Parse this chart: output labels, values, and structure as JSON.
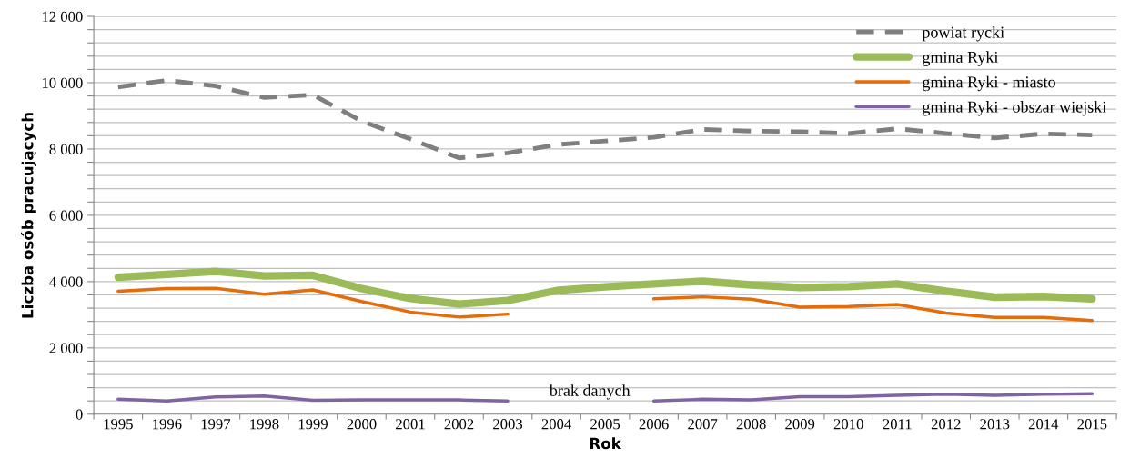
{
  "chart_data": {
    "type": "line",
    "xlabel": "Rok",
    "ylabel": "Liczba osób pracujących",
    "categories": [
      "1995",
      "1996",
      "1997",
      "1998",
      "1999",
      "2000",
      "2001",
      "2002",
      "2003",
      "2004",
      "2005",
      "2006",
      "2007",
      "2008",
      "2009",
      "2010",
      "2011",
      "2012",
      "2013",
      "2014",
      "2015"
    ],
    "series": [
      {
        "name": "powiat rycki",
        "color": "#7f7f7f",
        "line_style": "dashed",
        "values": [
          9870,
          10070,
          9900,
          9550,
          9630,
          8840,
          8300,
          7730,
          7880,
          8130,
          8240,
          8350,
          8590,
          8540,
          8520,
          8470,
          8610,
          8470,
          8330,
          8460,
          8420
        ]
      },
      {
        "name": "gmina Ryki",
        "color": "#9bbb59",
        "line_style": "solid",
        "values": [
          4130,
          4220,
          4310,
          4170,
          4190,
          3790,
          3490,
          3320,
          3430,
          3730,
          3840,
          3930,
          4010,
          3900,
          3820,
          3850,
          3930,
          3710,
          3530,
          3550,
          3480
        ]
      },
      {
        "name": "gmina Ryki - miasto",
        "color": "#e46c0a",
        "line_style": "solid",
        "values": [
          3710,
          3790,
          3800,
          3620,
          3750,
          3400,
          3080,
          2930,
          3020,
          null,
          null,
          3480,
          3540,
          3470,
          3230,
          3250,
          3310,
          3050,
          2920,
          2920,
          2825
        ]
      },
      {
        "name": "gmina Ryki - obszar wiejski",
        "color": "#8064a2",
        "line_style": "solid",
        "values": [
          450,
          400,
          520,
          550,
          420,
          430,
          430,
          430,
          400,
          null,
          null,
          400,
          450,
          430,
          530,
          530,
          570,
          600,
          570,
          600,
          620
        ]
      }
    ],
    "ylim": [
      0,
      12000
    ],
    "yticks": [
      {
        "value": 0,
        "label": "0"
      },
      {
        "value": 400,
        "label": null
      },
      {
        "value": 800,
        "label": null
      },
      {
        "value": 1200,
        "label": null
      },
      {
        "value": 1600,
        "label": null
      },
      {
        "value": 2000,
        "label": "2 000"
      },
      {
        "value": 2400,
        "label": null
      },
      {
        "value": 2800,
        "label": null
      },
      {
        "value": 3200,
        "label": null
      },
      {
        "value": 3600,
        "label": null
      },
      {
        "value": 4000,
        "label": "4 000"
      },
      {
        "value": 4400,
        "label": null
      },
      {
        "value": 4800,
        "label": null
      },
      {
        "value": 5200,
        "label": null
      },
      {
        "value": 5600,
        "label": null
      },
      {
        "value": 6000,
        "label": "6 000"
      },
      {
        "value": 6400,
        "label": null
      },
      {
        "value": 6800,
        "label": null
      },
      {
        "value": 7200,
        "label": null
      },
      {
        "value": 7600,
        "label": null
      },
      {
        "value": 8000,
        "label": "8 000"
      },
      {
        "value": 8400,
        "label": null
      },
      {
        "value": 8800,
        "label": null
      },
      {
        "value": 9200,
        "label": null
      },
      {
        "value": 9600,
        "label": null
      },
      {
        "value": 10000,
        "label": "10 000"
      },
      {
        "value": 10400,
        "label": null
      },
      {
        "value": 10800,
        "label": null
      },
      {
        "value": 11200,
        "label": null
      },
      {
        "value": 11600,
        "label": null
      },
      {
        "value": 12000,
        "label": "12 000"
      }
    ],
    "grid": "y",
    "legend": "top right",
    "marker": "none",
    "annotations": [
      "brak danych"
    ]
  }
}
